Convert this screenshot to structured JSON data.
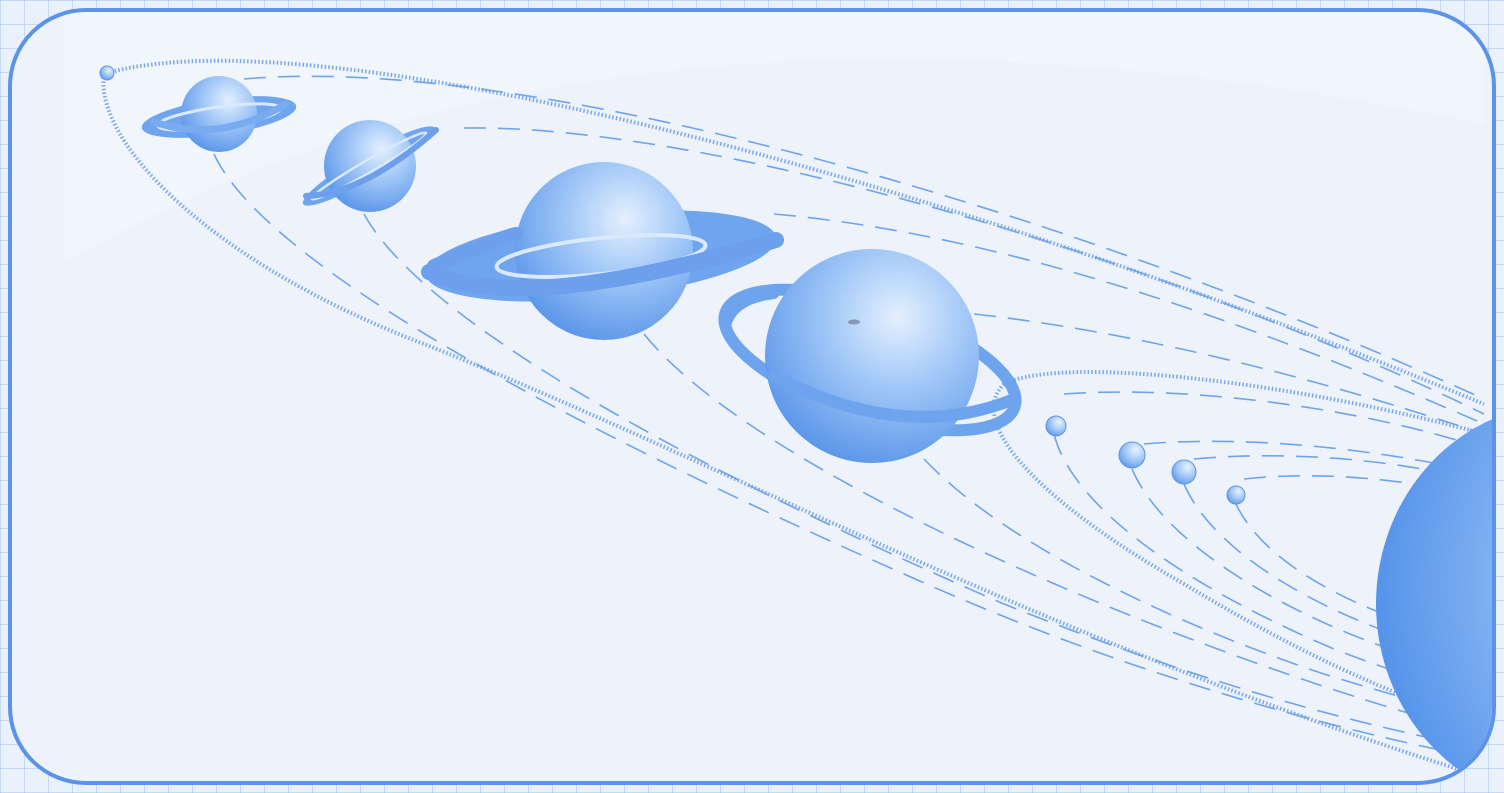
{
  "illustration": {
    "theme_colors": {
      "paper": "#eef3fb",
      "grid": "#a9c6ee",
      "frame": "#5b93e8",
      "orbit_line": "#6ea4ee",
      "planet_light": "#d8e8fd",
      "planet_mid": "#8fbcf5",
      "planet_dark": "#4b8ae6"
    },
    "outer_planets": [
      {
        "name": "small-moon-icon",
        "ringed": false
      },
      {
        "name": "ringed-planet-1-icon",
        "ringed": true
      },
      {
        "name": "ringed-planet-2-icon",
        "ringed": true
      },
      {
        "name": "ringed-planet-3-icon",
        "ringed": true
      },
      {
        "name": "ringed-planet-4-icon",
        "ringed": true
      }
    ],
    "inner_planets": [
      {
        "name": "inner-planet-1-icon",
        "ringed": false
      },
      {
        "name": "inner-planet-2-icon",
        "ringed": false
      },
      {
        "name": "inner-planet-3-icon",
        "ringed": false
      },
      {
        "name": "inner-planet-4-icon",
        "ringed": false
      }
    ],
    "central_body": {
      "name": "sun-icon"
    }
  }
}
